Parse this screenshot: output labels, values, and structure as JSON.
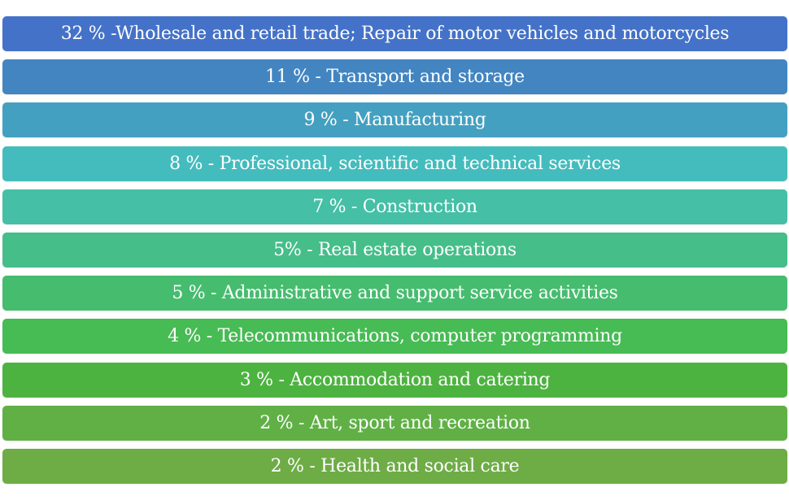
{
  "items": [
    {
      "label": "32 % -Wholesale and retail trade; Repair of motor vehicles and motorcycles",
      "color": "#4472C8"
    },
    {
      "label": "11 % - Transport and storage",
      "color": "#4385C0"
    },
    {
      "label": "9 % - Manufacturing",
      "color": "#43A0C0"
    },
    {
      "label": "8 % - Professional, scientific and technical services",
      "color": "#44BCBE"
    },
    {
      "label": "7 % - Construction",
      "color": "#45BFA6"
    },
    {
      "label": "5% - Real estate operations",
      "color": "#45BE8A"
    },
    {
      "label": "5 % - Administrative and support service activities",
      "color": "#46BC6F"
    },
    {
      "label": "4 % - Telecommunications, computer programming",
      "color": "#47BB54"
    },
    {
      "label": "3 % - Accommodation and catering",
      "color": "#4DB340"
    },
    {
      "label": "2 % - Art, sport and recreation",
      "color": "#60B046"
    },
    {
      "label": "2 % - Health and social care",
      "color": "#6EAC46"
    }
  ]
}
